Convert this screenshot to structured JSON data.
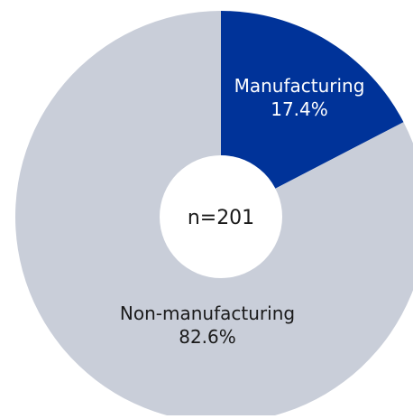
{
  "chart_data": {
    "type": "pie",
    "title": "",
    "center_label": "n=201",
    "slices": [
      {
        "label": "Manufacturing",
        "value": 17.4,
        "value_label": "17.4%",
        "color": "#003399",
        "label_color": "#ffffff"
      },
      {
        "label": "Non-manufacturing",
        "value": 82.6,
        "value_label": "82.6%",
        "color": "#c9ced9",
        "label_color": "#1a1a1a"
      }
    ],
    "legend": "none"
  }
}
